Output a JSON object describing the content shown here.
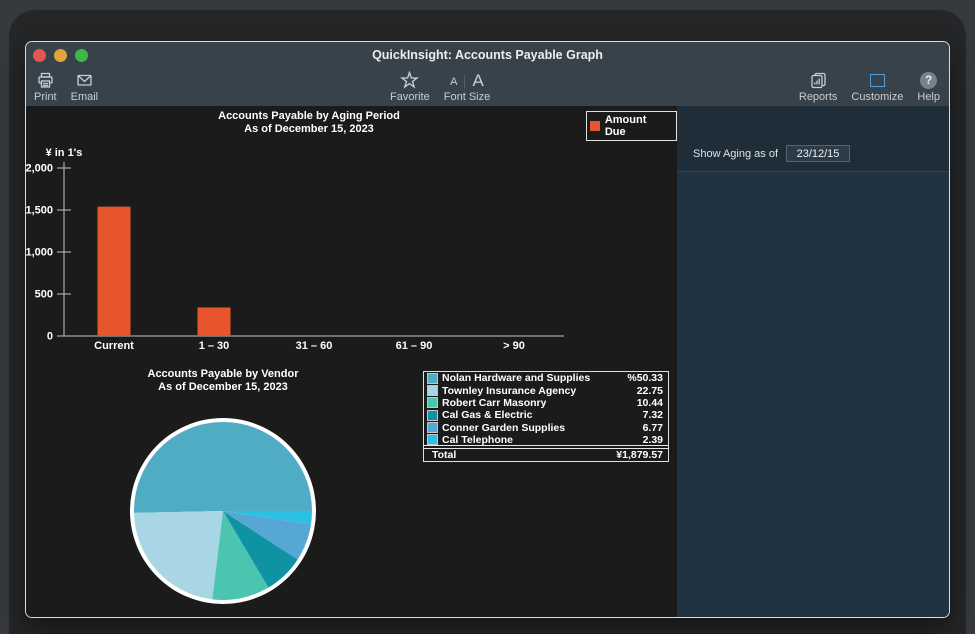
{
  "titlebar": {
    "title": "QuickInsight: Accounts Payable Graph"
  },
  "toolbar": {
    "print": "Print",
    "email": "Email",
    "favorite": "Favorite",
    "font_size": "Font Size",
    "reports": "Reports",
    "customize": "Customize",
    "help": "Help",
    "help_glyph": "?",
    "font_small_glyph": "A",
    "font_big_glyph": "A"
  },
  "bar_section": {
    "title_line1": "Accounts Payable by Aging Period",
    "title_line2": "As of December 15, 2023",
    "legend_label": "Amount Due",
    "y_axis_title": "¥ in 1's"
  },
  "pie_section": {
    "title_line1": "Accounts Payable by Vendor",
    "title_line2": "As of December 15, 2023"
  },
  "vendor_table": {
    "rows": [
      {
        "name": "Nolan Hardware and Supplies",
        "value": "%50.33",
        "color": "#4FACC4"
      },
      {
        "name": "Townley Insurance Agency",
        "value": "22.75",
        "color": "#A9D6E5"
      },
      {
        "name": "Robert Carr Masonry",
        "value": "10.44",
        "color": "#4CC5B0"
      },
      {
        "name": "Cal Gas & Electric",
        "value": "7.32",
        "color": "#0F93A2"
      },
      {
        "name": "Conner Garden Supplies",
        "value": "6.77",
        "color": "#57A7D4"
      },
      {
        "name": "Cal Telephone",
        "value": "2.39",
        "color": "#2BC0E4"
      }
    ],
    "total_label": "Total",
    "total_value": "¥1,879.57"
  },
  "side_panel": {
    "aging_label": "Show Aging as of",
    "date_value": "23/12/15"
  },
  "colors": {
    "bar_orange": "#E6552C",
    "chart_bg": "#1B1B1B",
    "chrome": "#37424B",
    "panel": "#213340",
    "axis": "#BFC3C6",
    "customize_blue": "#4E9EDC"
  },
  "chart_data": [
    {
      "type": "bar",
      "title": "Accounts Payable by Aging Period",
      "subtitle": "As of December 15, 2023",
      "series_name": "Amount Due",
      "categories": [
        "Current",
        "1 – 30",
        "31 – 60",
        "61 – 90",
        "> 90"
      ],
      "values": [
        1540,
        340,
        0,
        0,
        0
      ],
      "bar_color": "#E6552C",
      "ylabel": "¥ in 1's",
      "ylim": [
        0,
        2000
      ],
      "yticks": [
        {
          "v": 0,
          "label": "0"
        },
        {
          "v": 500,
          "label": "500"
        },
        {
          "v": 1000,
          "label": "1,000"
        },
        {
          "v": 1500,
          "label": "1,500"
        },
        {
          "v": 2000,
          "label": "2,000"
        }
      ],
      "grid": false,
      "legend_position": "top-right"
    },
    {
      "type": "pie",
      "title": "Accounts Payable by Vendor",
      "subtitle": "As of December 15, 2023",
      "labels": [
        "Nolan Hardware and Supplies",
        "Townley Insurance Agency",
        "Robert Carr Masonry",
        "Cal Gas & Electric",
        "Conner Garden Supplies",
        "Cal Telephone"
      ],
      "values": [
        50.33,
        22.75,
        10.44,
        7.32,
        6.77,
        2.39
      ],
      "colors": [
        "#4FACC4",
        "#A9D6E5",
        "#4CC5B0",
        "#0F93A2",
        "#57A7D4",
        "#2BC0E4"
      ],
      "total": "¥1,879.57",
      "start_angle_deg": 0,
      "direction": "counterclockwise",
      "ring_color": "#FFFFFF"
    }
  ]
}
